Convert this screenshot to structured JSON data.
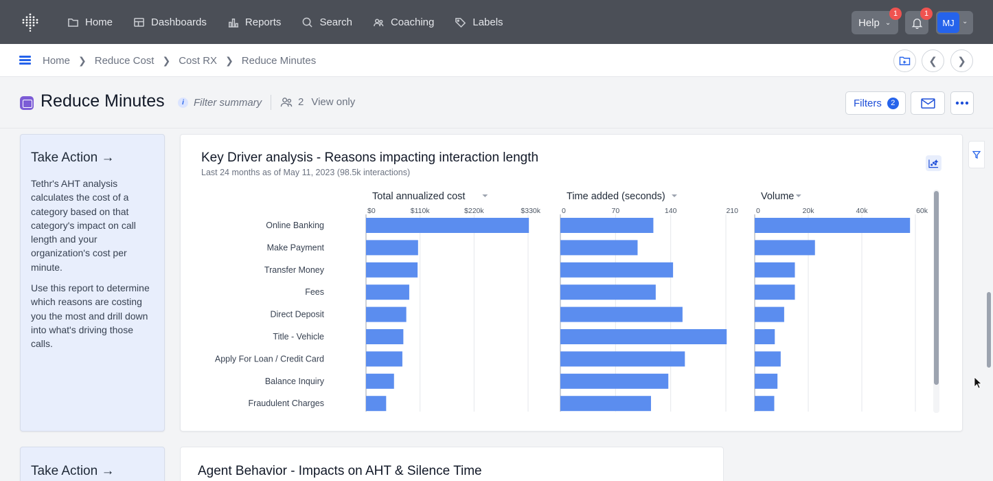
{
  "nav": {
    "items": [
      {
        "label": "Home",
        "icon": "folder-icon"
      },
      {
        "label": "Dashboards",
        "icon": "dashboard-icon"
      },
      {
        "label": "Reports",
        "icon": "bar-chart-icon"
      },
      {
        "label": "Search",
        "icon": "search-icon"
      },
      {
        "label": "Coaching",
        "icon": "people-icon"
      },
      {
        "label": "Labels",
        "icon": "tag-icon"
      }
    ],
    "help_label": "Help",
    "help_badge": "1",
    "notif_badge": "1",
    "avatar_initials": "MJ"
  },
  "breadcrumb": [
    "Home",
    "Reduce Cost",
    "Cost RX",
    "Reduce Minutes"
  ],
  "header": {
    "title": "Reduce Minutes",
    "filter_summary": "Filter summary",
    "viewer_count": "2",
    "access": "View only",
    "filters_label": "Filters",
    "filters_count": "2"
  },
  "take_action": {
    "title": "Take Action →",
    "para1": "Tethr's AHT analysis calculates the cost of a category based on that category's impact on call length and your organization's cost per minute.",
    "para2": "Use this report to determine which reasons are costing you the most and drill down into what's driving those calls."
  },
  "take_action_2": {
    "title": "Take Action →"
  },
  "agent_card": {
    "title": "Agent Behavior - Impacts on AHT & Silence Time"
  },
  "colors": {
    "bar": "#5b8def",
    "nav_bg": "#4b4f57",
    "accent": "#2563eb",
    "badge": "#ef5350"
  },
  "chart_data": {
    "type": "bar",
    "title": "Key Driver analysis - Reasons impacting interaction length",
    "subtitle": "Last 24 months as of May 11, 2023 (98.5k interactions)",
    "categories": [
      "Online Banking",
      "Make Payment",
      "Transfer Money",
      "Fees",
      "Direct Deposit",
      "Title - Vehicle",
      "Apply For Loan / Credit Card",
      "Balance Inquiry",
      "Fraudulent Charges"
    ],
    "orientation": "horizontal",
    "series": [
      {
        "name": "Total annualized cost",
        "values": [
          332000,
          106000,
          105000,
          88000,
          82000,
          76000,
          74000,
          57000,
          41000
        ],
        "xlim": [
          0,
          330000
        ],
        "ticks": [
          0,
          110000,
          220000,
          330000
        ],
        "tick_labels": [
          "$0",
          "$110k",
          "$220k",
          "$330k"
        ]
      },
      {
        "name": "Time added (seconds)",
        "values": [
          118,
          98,
          143,
          121,
          155,
          215,
          158,
          137,
          115
        ],
        "xlim": [
          0,
          210
        ],
        "ticks": [
          0,
          70,
          140,
          210
        ],
        "tick_labels": [
          "0",
          "70",
          "140",
          "210"
        ]
      },
      {
        "name": "Volume",
        "values": [
          58000,
          22500,
          15000,
          15000,
          11000,
          7500,
          9700,
          8500,
          7300
        ],
        "xlim": [
          0,
          60000
        ],
        "ticks": [
          0,
          20000,
          40000,
          60000
        ],
        "tick_labels": [
          "0",
          "20k",
          "40k",
          "60k"
        ]
      }
    ],
    "grid": true
  }
}
